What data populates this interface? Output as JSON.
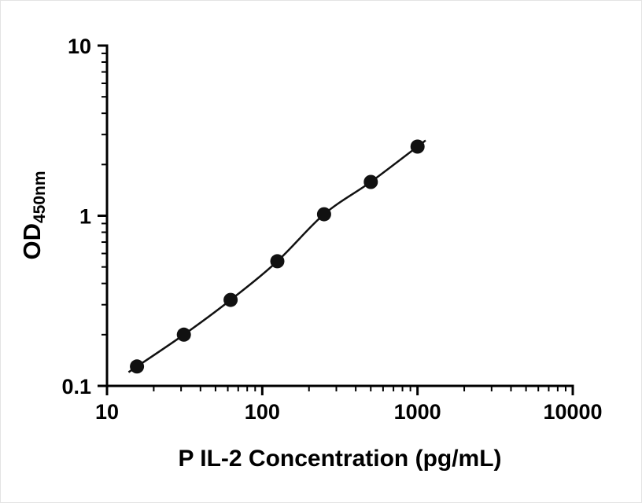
{
  "figure": {
    "background": "#ffffff",
    "border_color": "#e3e3e3"
  },
  "chart_data": {
    "type": "scatter",
    "x": [
      15.6,
      31.25,
      62.5,
      125,
      250,
      500,
      1000
    ],
    "y": [
      0.13,
      0.2,
      0.32,
      0.54,
      1.02,
      1.58,
      2.55
    ],
    "title": "",
    "xlabel": "P IL-2 Concentration (pg/mL)",
    "ylabel_main": "OD",
    "ylabel_sub": "450nm",
    "xscale": "log",
    "yscale": "log",
    "xlim": [
      10,
      10000
    ],
    "ylim": [
      0.1,
      10
    ],
    "x_tick_values": [
      10,
      100,
      1000,
      10000
    ],
    "x_tick_labels": [
      "10",
      "100",
      "1000",
      "10000"
    ],
    "y_tick_values": [
      10,
      1,
      0.1
    ],
    "y_tick_labels": [
      "10",
      "1",
      "0.1"
    ],
    "grid": false,
    "legend": "none",
    "marker": "circle",
    "marker_color": "#111111",
    "line_color": "#111111",
    "axis_color": "#000000"
  }
}
